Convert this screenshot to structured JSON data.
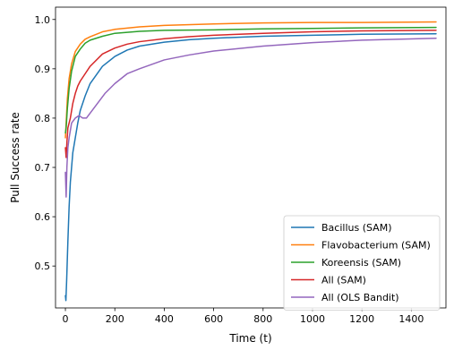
{
  "chart_data": {
    "type": "line",
    "title": "",
    "xlabel": "Time (t)",
    "ylabel": "Pull Success rate",
    "xlim": [
      -40,
      1540
    ],
    "ylim": [
      0.415,
      1.025
    ],
    "xticks": [
      0,
      200,
      400,
      600,
      800,
      1000,
      1200,
      1400
    ],
    "yticks": [
      0.5,
      0.6,
      0.7,
      0.8,
      0.9,
      1.0
    ],
    "xtick_labels": [
      "0",
      "200",
      "400",
      "600",
      "800",
      "1000",
      "1200",
      "1400"
    ],
    "ytick_labels": [
      "0.5",
      "0.6",
      "0.7",
      "0.8",
      "0.9",
      "1.0"
    ],
    "grid": false,
    "legend_position": "lower-right",
    "series": [
      {
        "name": "Bacillus (SAM)",
        "color": "#1f77b4",
        "x": [
          0,
          2,
          5,
          10,
          15,
          20,
          30,
          40,
          50,
          60,
          80,
          100,
          150,
          200,
          250,
          300,
          400,
          500,
          600,
          800,
          1000,
          1200,
          1500
        ],
        "y": [
          0.44,
          0.43,
          0.47,
          0.55,
          0.62,
          0.67,
          0.73,
          0.76,
          0.79,
          0.815,
          0.845,
          0.87,
          0.905,
          0.925,
          0.938,
          0.946,
          0.954,
          0.959,
          0.962,
          0.966,
          0.968,
          0.97,
          0.971
        ]
      },
      {
        "name": "Flavobacterium (SAM)",
        "color": "#ff7f0e",
        "x": [
          0,
          3,
          8,
          15,
          25,
          40,
          60,
          80,
          100,
          150,
          200,
          300,
          400,
          600,
          800,
          1000,
          1200,
          1500
        ],
        "y": [
          0.76,
          0.79,
          0.84,
          0.88,
          0.91,
          0.935,
          0.95,
          0.96,
          0.965,
          0.975,
          0.98,
          0.985,
          0.988,
          0.991,
          0.993,
          0.994,
          0.994,
          0.995
        ]
      },
      {
        "name": "Koreensis (SAM)",
        "color": "#2ca02c",
        "x": [
          0,
          3,
          8,
          15,
          25,
          40,
          60,
          80,
          100,
          150,
          200,
          300,
          400,
          600,
          800,
          1000,
          1200,
          1500
        ],
        "y": [
          0.77,
          0.78,
          0.82,
          0.86,
          0.895,
          0.925,
          0.94,
          0.952,
          0.958,
          0.966,
          0.972,
          0.976,
          0.978,
          0.979,
          0.981,
          0.982,
          0.983,
          0.984
        ]
      },
      {
        "name": "All (SAM)",
        "color": "#d62728",
        "x": [
          0,
          3,
          6,
          10,
          15,
          20,
          30,
          40,
          50,
          60,
          80,
          100,
          150,
          200,
          250,
          300,
          400,
          500,
          600,
          800,
          1000,
          1200,
          1500
        ],
        "y": [
          0.74,
          0.72,
          0.75,
          0.78,
          0.79,
          0.8,
          0.83,
          0.85,
          0.865,
          0.875,
          0.89,
          0.905,
          0.93,
          0.942,
          0.95,
          0.955,
          0.961,
          0.965,
          0.968,
          0.972,
          0.975,
          0.977,
          0.978
        ]
      },
      {
        "name": "All (OLS Bandit)",
        "color": "#9467bd",
        "x": [
          0,
          3,
          6,
          10,
          15,
          25,
          40,
          55,
          70,
          85,
          100,
          130,
          160,
          200,
          250,
          300,
          400,
          500,
          600,
          800,
          1000,
          1200,
          1500
        ],
        "y": [
          0.69,
          0.64,
          0.7,
          0.74,
          0.76,
          0.79,
          0.8,
          0.805,
          0.8,
          0.8,
          0.81,
          0.83,
          0.85,
          0.87,
          0.89,
          0.9,
          0.918,
          0.928,
          0.936,
          0.946,
          0.953,
          0.958,
          0.962
        ]
      }
    ]
  }
}
